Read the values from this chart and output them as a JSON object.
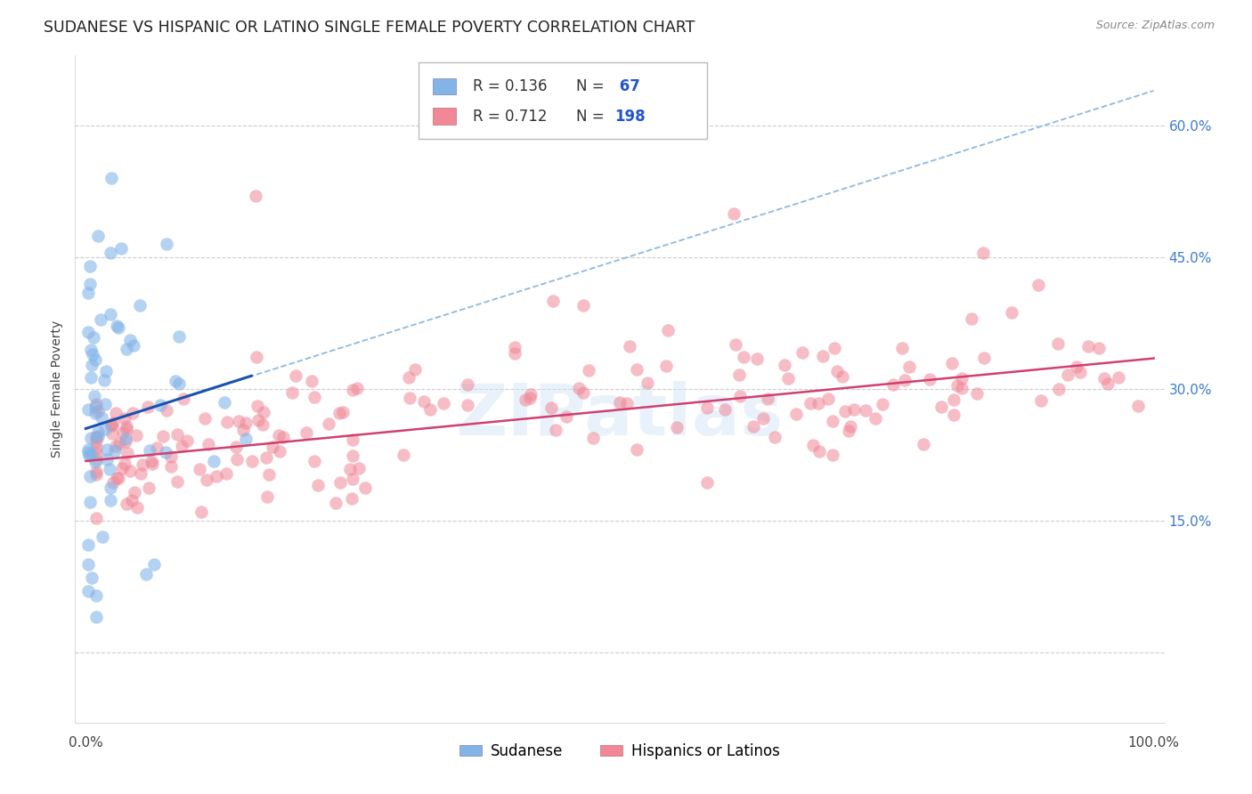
{
  "title": "SUDANESE VS HISPANIC OR LATINO SINGLE FEMALE POVERTY CORRELATION CHART",
  "source": "Source: ZipAtlas.com",
  "ylabel": "Single Female Poverty",
  "blue_R": 0.136,
  "blue_N": 67,
  "pink_R": 0.712,
  "pink_N": 198,
  "blue_color": "#82b4e8",
  "pink_color": "#f08898",
  "blue_line_color": "#1a52b0",
  "pink_line_color": "#d04070",
  "dashed_line_color": "#90b8e0",
  "background_color": "#ffffff",
  "watermark": "ZIPatlas",
  "title_fontsize": 12.5,
  "axis_label_fontsize": 10,
  "tick_fontsize": 11,
  "source_fontsize": 9,
  "xlim": [
    -0.01,
    1.01
  ],
  "ylim": [
    -0.08,
    0.68
  ],
  "ytick_vals": [
    0.0,
    0.15,
    0.3,
    0.45,
    0.6
  ],
  "ytick_labels": [
    "",
    "15.0%",
    "30.0%",
    "45.0%",
    "60.0%"
  ],
  "blue_line_x0": 0.0,
  "blue_line_y0": 0.255,
  "blue_line_x1": 0.155,
  "blue_line_y1": 0.315,
  "dashed_line_x0": 0.0,
  "dashed_line_y0": 0.255,
  "dashed_line_x1": 1.0,
  "dashed_line_y1": 0.64,
  "pink_line_x0": 0.0,
  "pink_line_y0": 0.218,
  "pink_line_x1": 1.0,
  "pink_line_y1": 0.335
}
